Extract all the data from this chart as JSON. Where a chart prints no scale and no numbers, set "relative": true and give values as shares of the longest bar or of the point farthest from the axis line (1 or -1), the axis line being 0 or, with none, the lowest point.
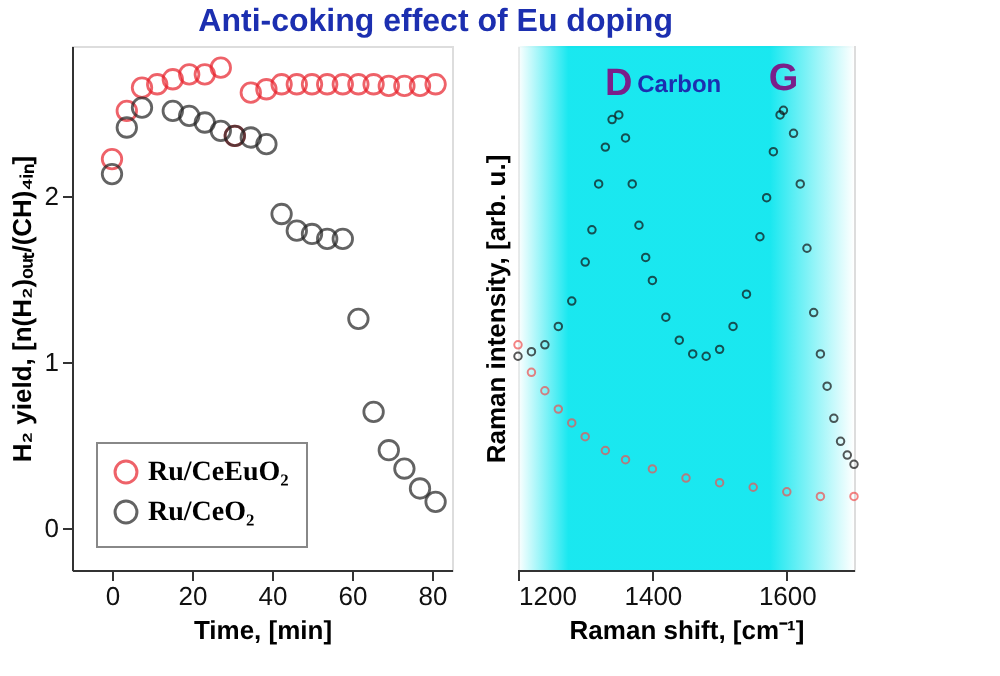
{
  "chart_data": [
    {
      "type": "scatter",
      "title": "Anti-coking effect of Eu doping",
      "xlabel": "Time, [min]",
      "ylabel": "H₂ yield, [n(H₂)ₒᵤₜ/(CH)₄ᵢₙ]",
      "xlim": [
        -10,
        85
      ],
      "ylim": [
        -0.25,
        2.9
      ],
      "xticks": [
        0,
        20,
        40,
        60,
        80
      ],
      "yticks": [
        0,
        1,
        2
      ],
      "marker": "circle",
      "legend": "bottom left",
      "grid": false,
      "series": [
        {
          "name": "Ru/CeEuO₂",
          "color": "#e8202a",
          "x": [
            0,
            3.7,
            7.5,
            11.3,
            15.2,
            19.3,
            23.2,
            27.2,
            30.7,
            34.7,
            38.6,
            42.4,
            46.2,
            50,
            53.8,
            57.7,
            61.6,
            65.4,
            69.2,
            73.1,
            77,
            80.9
          ],
          "values": [
            2.22,
            2.51,
            2.65,
            2.67,
            2.7,
            2.73,
            2.73,
            2.77,
            2.36,
            2.62,
            2.64,
            2.67,
            2.67,
            2.67,
            2.67,
            2.67,
            2.67,
            2.67,
            2.66,
            2.66,
            2.66,
            2.67
          ]
        },
        {
          "name": "Ru/CeO₂",
          "color": "#222222",
          "x": [
            0,
            3.7,
            7.5,
            15.2,
            19.3,
            23.2,
            27.2,
            30.7,
            34.7,
            38.6,
            42.4,
            46.2,
            50,
            53.8,
            57.7,
            61.6,
            65.4,
            69.2,
            73.1,
            77,
            80.9
          ],
          "values": [
            2.13,
            2.41,
            2.53,
            2.51,
            2.48,
            2.44,
            2.39,
            2.36,
            2.35,
            2.31,
            1.89,
            1.79,
            1.77,
            1.74,
            1.74,
            1.26,
            0.7,
            0.47,
            0.36,
            0.24,
            0.16
          ]
        }
      ]
    },
    {
      "type": "scatter",
      "relative": true,
      "xlabel": "Raman shift, [cm⁻¹]",
      "ylabel": "Raman intensity, [arb. u.]",
      "xlim": [
        1200,
        1700
      ],
      "xticks": [
        1200,
        1400,
        1600
      ],
      "tick_labels": "x",
      "marker": "circle",
      "legend": false,
      "grid": false,
      "bands": [
        {
          "axis": "x",
          "from": 1200,
          "to": 1700,
          "label": "Carbon",
          "color": "#00e5ee"
        }
      ],
      "annotations": [
        {
          "text": "D",
          "x": 1350,
          "y": 0.99
        },
        {
          "text": "G",
          "x": 1595,
          "y": 1.0
        }
      ],
      "series": [
        {
          "color": "#111111",
          "x": [
            1200,
            1220,
            1240,
            1260,
            1280,
            1300,
            1310,
            1320,
            1330,
            1340,
            1350,
            1360,
            1370,
            1380,
            1390,
            1400,
            1420,
            1440,
            1460,
            1480,
            1500,
            1520,
            1540,
            1560,
            1570,
            1580,
            1590,
            1595,
            1610,
            1620,
            1630,
            1640,
            1650,
            1660,
            1670,
            1680,
            1690,
            1700
          ],
          "values": [
            0.465,
            0.475,
            0.49,
            0.53,
            0.585,
            0.67,
            0.74,
            0.84,
            0.92,
            0.98,
            0.99,
            0.94,
            0.84,
            0.75,
            0.68,
            0.63,
            0.55,
            0.5,
            0.47,
            0.465,
            0.48,
            0.53,
            0.6,
            0.725,
            0.81,
            0.91,
            0.99,
            1.0,
            0.95,
            0.84,
            0.7,
            0.56,
            0.47,
            0.4,
            0.33,
            0.28,
            0.25,
            0.23
          ]
        },
        {
          "color": "#f05050",
          "x": [
            1200,
            1220,
            1240,
            1260,
            1280,
            1300,
            1330,
            1360,
            1400,
            1450,
            1500,
            1550,
            1600,
            1650,
            1700
          ],
          "values": [
            0.49,
            0.43,
            0.39,
            0.35,
            0.32,
            0.29,
            0.26,
            0.24,
            0.22,
            0.2,
            0.19,
            0.18,
            0.17,
            0.16,
            0.16
          ]
        }
      ]
    }
  ]
}
